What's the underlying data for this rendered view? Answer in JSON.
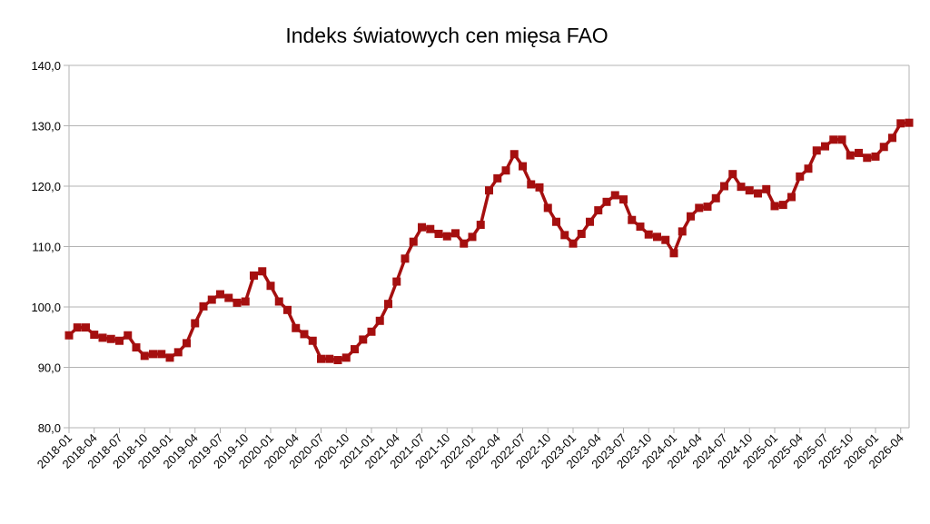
{
  "chart_data": {
    "type": "line",
    "title": "Indeks światowych cen mięsa FAO",
    "xlabel": "",
    "ylabel": "",
    "ylim": [
      80,
      140
    ],
    "yticks": [
      "80,0",
      "90,0",
      "100,0",
      "110,0",
      "120,0",
      "130,0",
      "140,0"
    ],
    "ytick_values": [
      80,
      90,
      100,
      110,
      120,
      130,
      140
    ],
    "xtick_labels": [
      "2018-01",
      "2018-04",
      "2018-07",
      "2018-10",
      "2019-01",
      "2019-04",
      "2019-07",
      "2019-10",
      "2020-01",
      "2020-04",
      "2020-07",
      "2020-10",
      "2021-01",
      "2021-04",
      "2021-07",
      "2021-10",
      "2022-01",
      "2022-04",
      "2022-07",
      "2022-10",
      "2023-01",
      "2023-04",
      "2023-07",
      "2023-10",
      "2024-01",
      "2024-04",
      "2024-07",
      "2024-10",
      "2025-01",
      "2025-04",
      "2025-07",
      "2025-10",
      "2026-01",
      "2026-04"
    ],
    "grid": true,
    "legend": "none",
    "colors": {
      "series": "#a50f0f",
      "grid": "#b3b3b3"
    },
    "x": [
      "2018-01",
      "2018-02",
      "2018-03",
      "2018-04",
      "2018-05",
      "2018-06",
      "2018-07",
      "2018-08",
      "2018-09",
      "2018-10",
      "2018-11",
      "2018-12",
      "2019-01",
      "2019-02",
      "2019-03",
      "2019-04",
      "2019-05",
      "2019-06",
      "2019-07",
      "2019-08",
      "2019-09",
      "2019-10",
      "2019-11",
      "2019-12",
      "2020-01",
      "2020-02",
      "2020-03",
      "2020-04",
      "2020-05",
      "2020-06",
      "2020-07",
      "2020-08",
      "2020-09",
      "2020-10",
      "2020-11",
      "2020-12",
      "2021-01",
      "2021-02",
      "2021-03",
      "2021-04",
      "2021-05",
      "2021-06",
      "2021-07",
      "2021-08",
      "2021-09",
      "2021-10",
      "2021-11",
      "2021-12",
      "2022-01",
      "2022-02",
      "2022-03",
      "2022-04",
      "2022-05",
      "2022-06",
      "2022-07",
      "2022-08",
      "2022-09",
      "2022-10",
      "2022-11",
      "2022-12",
      "2023-01",
      "2023-02",
      "2023-03",
      "2023-04",
      "2023-05",
      "2023-06",
      "2023-07",
      "2023-08",
      "2023-09",
      "2023-10",
      "2023-11",
      "2023-12",
      "2024-01",
      "2024-02",
      "2024-03",
      "2024-04",
      "2024-05",
      "2024-06",
      "2024-07",
      "2024-08",
      "2024-09",
      "2024-10",
      "2024-11",
      "2024-12",
      "2025-01",
      "2025-02",
      "2025-03",
      "2025-04",
      "2025-05",
      "2025-06",
      "2025-07",
      "2025-08",
      "2025-09",
      "2025-10",
      "2025-11",
      "2025-12",
      "2026-01",
      "2026-02",
      "2026-03",
      "2026-04",
      "2026-05"
    ],
    "series": [
      {
        "values": [
          95.3,
          96.6,
          96.6,
          95.4,
          94.9,
          94.7,
          94.4,
          95.3,
          93.3,
          91.9,
          92.2,
          92.2,
          91.6,
          92.5,
          94.0,
          97.3,
          100.1,
          101.2,
          102.1,
          101.5,
          100.7,
          100.9,
          105.2,
          105.9,
          103.5,
          100.9,
          99.5,
          96.5,
          95.5,
          94.4,
          91.4,
          91.4,
          91.2,
          91.6,
          93.0,
          94.6,
          95.9,
          97.7,
          100.5,
          104.2,
          108.0,
          110.8,
          113.2,
          112.9,
          112.1,
          111.7,
          112.2,
          110.5,
          111.6,
          113.6,
          119.3,
          121.3,
          122.6,
          125.3,
          123.3,
          120.3,
          119.8,
          116.4,
          114.1,
          111.9,
          110.5,
          112.1,
          114.1,
          116.0,
          117.4,
          118.5,
          117.8,
          114.4,
          113.3,
          112.0,
          111.6,
          111.1,
          108.9,
          112.5,
          115.0,
          116.4,
          116.6,
          118.0,
          120.0,
          122.0,
          119.9,
          119.3,
          118.8,
          119.5,
          116.7,
          116.9,
          118.2,
          121.6,
          122.9,
          125.9,
          126.6,
          127.7,
          127.7,
          125.1,
          125.5,
          124.7,
          124.9,
          126.5,
          128.0,
          130.4,
          130.5
        ]
      }
    ]
  }
}
